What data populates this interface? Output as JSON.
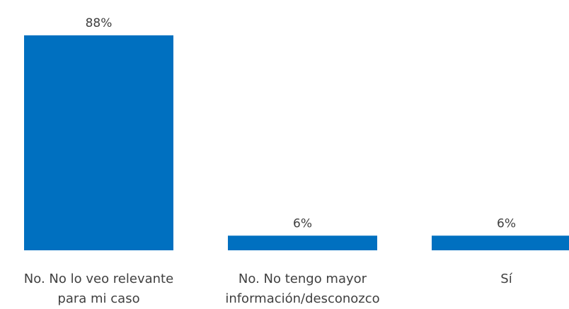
{
  "chart_data": {
    "type": "bar",
    "categories": [
      [
        "No. No lo veo relevante",
        "para mi caso"
      ],
      [
        "No. No tengo mayor",
        "información/desconozco"
      ],
      [
        "Sí"
      ]
    ],
    "values": [
      88,
      6,
      6
    ],
    "value_labels": [
      "88%",
      "6%",
      "6%"
    ],
    "unit": "%",
    "ylim": [
      0,
      88
    ],
    "grid": false,
    "legend": "none",
    "bar_color": "#0070C0"
  }
}
